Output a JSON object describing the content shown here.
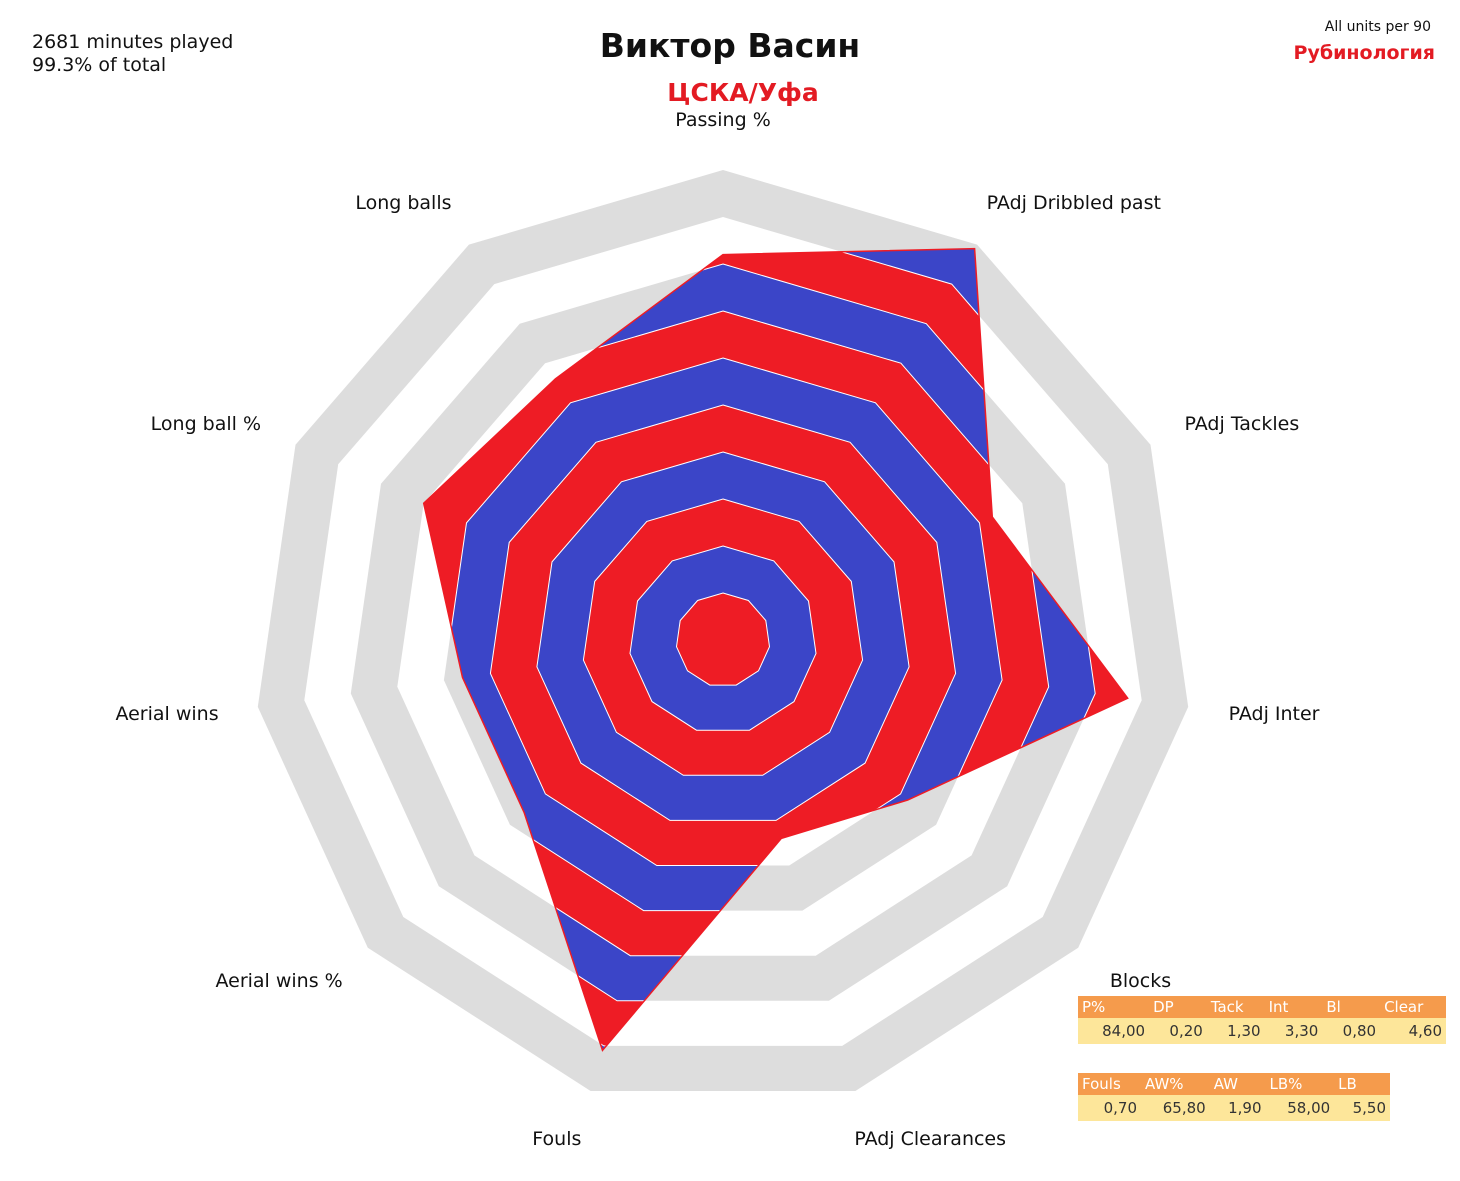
{
  "header": {
    "minutes_played": "2681 minutes played",
    "share_of_total": "99.3% of total",
    "player_name": "Виктор Васин",
    "team": "ЦСКА/Уфа",
    "units_note": "All units per 90",
    "brand": "Рубинология"
  },
  "chart_data": {
    "type": "radar",
    "title": "Виктор Васин",
    "subtitle": "ЦСКА/Уфа",
    "axes": [
      "Passing %",
      "PAdj Dribbled past",
      "PAdj Tackles",
      "PAdj Inter",
      "Blocks",
      "PAdj Clearances",
      "Fouls",
      "Aerial wins %",
      "Aerial wins",
      "Long ball %",
      "Long balls"
    ],
    "percentiles": [
      0.82,
      0.99,
      0.63,
      0.87,
      0.52,
      0.44,
      0.91,
      0.56,
      0.56,
      0.7,
      0.66
    ],
    "rings": 10,
    "colors": {
      "background_ring": "#dddddd",
      "band_red": "#ee1c25",
      "band_blue": "#3b45c8",
      "table_header": "#f59b4c",
      "table_cell": "#fde69a"
    }
  },
  "table1": {
    "headers": [
      "P%",
      "DP",
      "Tack",
      "Int",
      "Bl",
      "Clear"
    ],
    "values": [
      "84,00",
      "0,20",
      "1,30",
      "3,30",
      "0,80",
      "4,60"
    ]
  },
  "table2": {
    "headers": [
      "Fouls",
      "AW%",
      "AW",
      "LB%",
      "LB"
    ],
    "values": [
      "0,70",
      "65,80",
      "1,90",
      "58,00",
      "5,50"
    ]
  }
}
